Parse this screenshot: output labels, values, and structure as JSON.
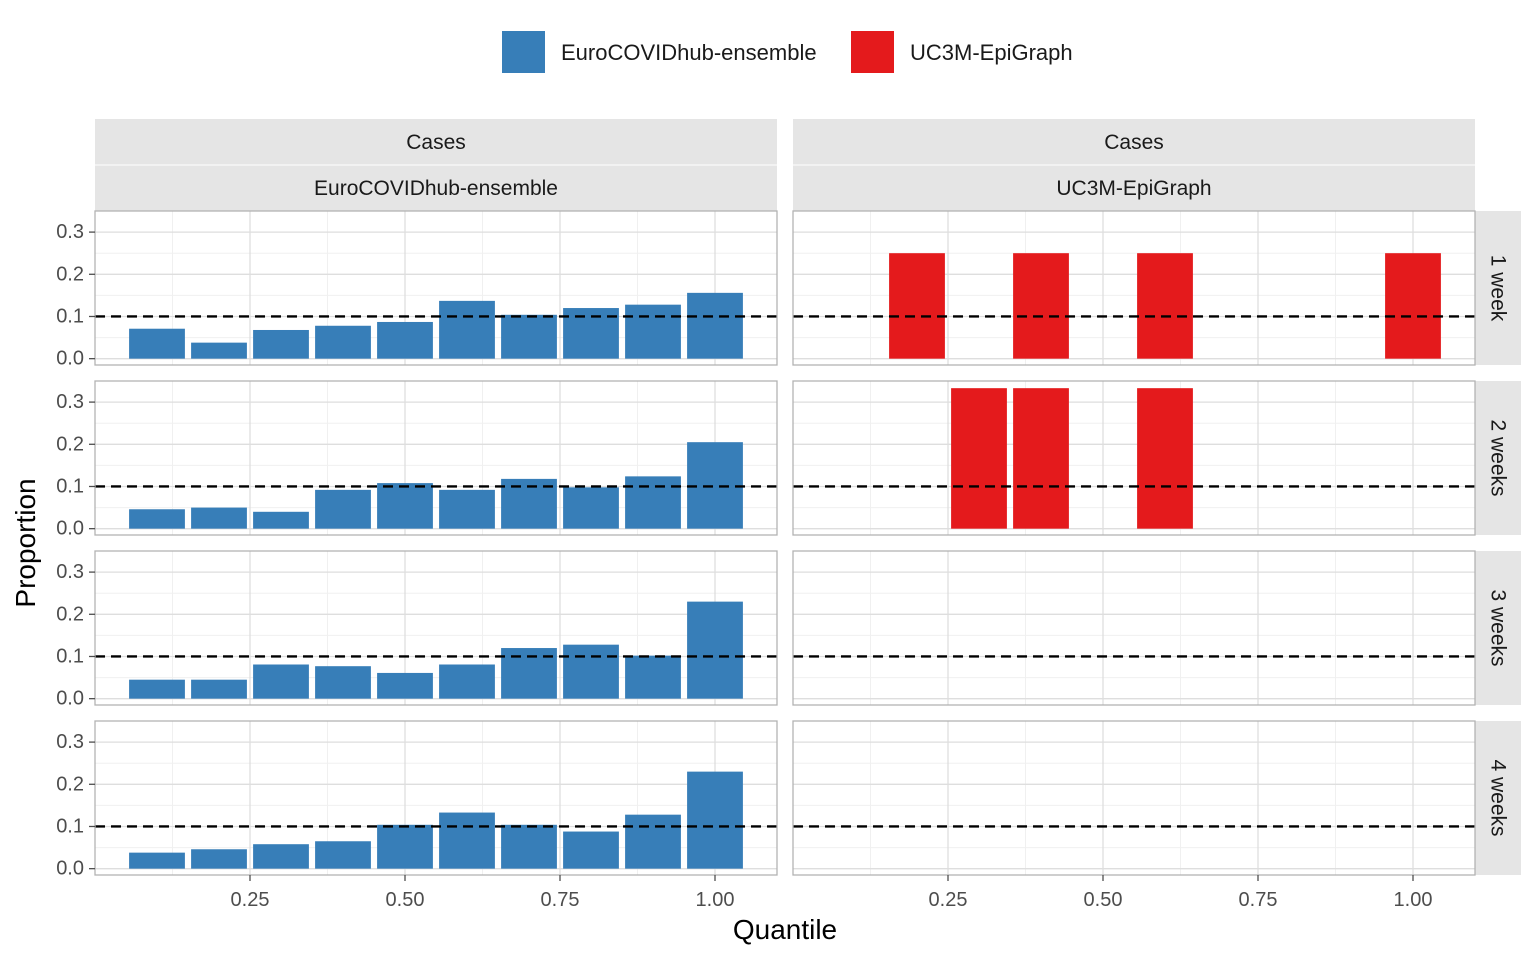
{
  "chart_data": {
    "type": "bar",
    "title": "",
    "xlabel": "Quantile",
    "ylabel": "Proportion",
    "xlim": [
      0.0,
      1.1
    ],
    "ylim": [
      -0.015,
      0.35
    ],
    "x_ticks": [
      0.25,
      0.5,
      0.75,
      1.0
    ],
    "x_tick_labels": [
      "0.25",
      "0.50",
      "0.75",
      "1.00"
    ],
    "y_ticks": [
      0.0,
      0.1,
      0.2,
      0.3
    ],
    "y_tick_labels": [
      "0.0",
      "0.1",
      "0.2",
      "0.3"
    ],
    "reference_line": 0.1,
    "bar_width": 0.09,
    "x": [
      0.1,
      0.2,
      0.3,
      0.4,
      0.5,
      0.6,
      0.7,
      0.8,
      0.9,
      1.0
    ],
    "grid": true,
    "legend_position": "top",
    "legend": [
      {
        "name": "EuroCOVIDhub-ensemble",
        "color": "#377eb8"
      },
      {
        "name": "UC3M-EpiGraph",
        "color": "#e41a1c"
      }
    ],
    "col_strip_top": [
      "Cases",
      "Cases"
    ],
    "col_strip_bottom": [
      "EuroCOVIDhub-ensemble",
      "UC3M-EpiGraph"
    ],
    "row_labels": [
      "1 week",
      "2 weeks",
      "3 weeks",
      "4 weeks"
    ],
    "series": [
      {
        "name": "EuroCOVIDhub-ensemble",
        "color": "#377eb8",
        "rows": [
          [
            0.071,
            0.038,
            0.068,
            0.078,
            0.087,
            0.137,
            0.104,
            0.12,
            0.128,
            0.156
          ],
          [
            0.046,
            0.05,
            0.04,
            0.092,
            0.108,
            0.092,
            0.118,
            0.098,
            0.124,
            0.205
          ],
          [
            0.045,
            0.045,
            0.081,
            0.077,
            0.061,
            0.081,
            0.12,
            0.128,
            0.102,
            0.23
          ],
          [
            0.038,
            0.046,
            0.058,
            0.065,
            0.104,
            0.133,
            0.104,
            0.088,
            0.128,
            0.23
          ]
        ]
      },
      {
        "name": "UC3M-EpiGraph",
        "color": "#e41a1c",
        "rows": [
          [
            null,
            0.25,
            null,
            0.25,
            null,
            0.25,
            null,
            null,
            null,
            0.25
          ],
          [
            null,
            null,
            0.333,
            0.333,
            null,
            0.333,
            null,
            null,
            null,
            null
          ],
          [
            null,
            null,
            null,
            null,
            null,
            null,
            null,
            null,
            null,
            null
          ],
          [
            null,
            null,
            null,
            null,
            null,
            null,
            null,
            null,
            null,
            null
          ]
        ]
      }
    ]
  }
}
